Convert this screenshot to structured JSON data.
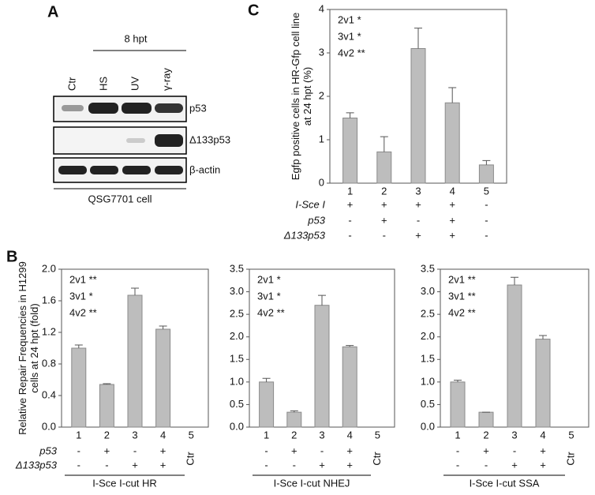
{
  "blot": {
    "panel": "A",
    "time_label": "8 hpt",
    "lanes": [
      "Ctr",
      "HS",
      "UV",
      "γ-ray"
    ],
    "bands": [
      "p53",
      "Δ133p53",
      "β-actin"
    ],
    "cell_line": "QSG7701 cell"
  },
  "chart_data": [
    {
      "type": "bar",
      "panel": "C",
      "ylabel": "Egfp positive cells  in HR-Gfp cell line at 24 hpt (%)",
      "color": "#bdbdbd",
      "categories": [
        "1",
        "2",
        "3",
        "4",
        "5"
      ],
      "values": [
        1.5,
        0.72,
        3.1,
        1.85,
        0.42
      ],
      "errors": [
        0.12,
        0.35,
        0.47,
        0.35,
        0.1
      ],
      "ylim": [
        0,
        4
      ],
      "yticks": [
        0,
        1,
        2,
        3,
        4
      ],
      "annotations": [
        "2v1 *",
        "3v1 *",
        "4v2 **"
      ],
      "rows": [
        {
          "label": "I-Sce I",
          "cells": [
            "+",
            "+",
            "+",
            "+",
            "-"
          ]
        },
        {
          "label": "p53",
          "cells": [
            "-",
            "+",
            "-",
            "+",
            "-"
          ]
        },
        {
          "label": "Δ133p53",
          "cells": [
            "-",
            "-",
            "+",
            "+",
            "-"
          ]
        }
      ]
    },
    {
      "type": "bar",
      "panel": "B",
      "ylabel": "Relative Repair Frequencies in H1299 cells at 24 hpt (fold)",
      "color": "#bdbdbd",
      "categories": [
        "1",
        "2",
        "3",
        "4",
        "5"
      ],
      "values": [
        1.0,
        0.54,
        1.67,
        1.24,
        null
      ],
      "errors": [
        0.04,
        0.01,
        0.09,
        0.04,
        null
      ],
      "ylim": [
        0,
        2
      ],
      "yticks": [
        {
          "value": 0,
          "label": "0.0"
        },
        0.4,
        0.8,
        1.2,
        1.6,
        {
          "value": 2,
          "label": "2.0"
        }
      ],
      "annotations": [
        "2v1 **",
        "3v1 *",
        "4v2 **"
      ],
      "rows": [
        {
          "label": "p53",
          "cells": [
            "-",
            "+",
            "-",
            "+"
          ]
        },
        {
          "label": "Δ133p53",
          "cells": [
            "-",
            "-",
            "+",
            "+"
          ]
        }
      ],
      "control_label": "Ctr",
      "xlabel": "I-Sce I-cut HR"
    },
    {
      "type": "bar",
      "color": "#bdbdbd",
      "categories": [
        "1",
        "2",
        "3",
        "4",
        "5"
      ],
      "values": [
        1.0,
        0.33,
        2.7,
        1.78,
        null
      ],
      "errors": [
        0.08,
        0.03,
        0.22,
        0.03,
        null
      ],
      "ylim": [
        0,
        3.5
      ],
      "yticks": [
        {
          "value": 0,
          "label": "0.0"
        },
        0.5,
        {
          "value": 1,
          "label": "1.0"
        },
        1.5,
        {
          "value": 2,
          "label": "2.0"
        },
        2.5,
        {
          "value": 3,
          "label": "3.0"
        },
        3.5
      ],
      "annotations": [
        "2v1 *",
        "3v1 *",
        "4v2 **"
      ],
      "rows": [
        {
          "cells": [
            "-",
            "+",
            "-",
            "+"
          ]
        },
        {
          "cells": [
            "-",
            "-",
            "+",
            "+"
          ]
        }
      ],
      "control_label": "Ctr",
      "xlabel": "I-Sce I-cut NHEJ"
    },
    {
      "type": "bar",
      "color": "#bdbdbd",
      "categories": [
        "1",
        "2",
        "3",
        "4",
        "5"
      ],
      "values": [
        1.0,
        0.33,
        3.15,
        1.95,
        null
      ],
      "errors": [
        0.04,
        0,
        0.17,
        0.08,
        null
      ],
      "ylim": [
        0,
        3.5
      ],
      "yticks": [
        {
          "value": 0,
          "label": "0.0"
        },
        0.5,
        {
          "value": 1,
          "label": "1.0"
        },
        1.5,
        {
          "value": 2,
          "label": "2.0"
        },
        2.5,
        {
          "value": 3,
          "label": "3.0"
        },
        3.5
      ],
      "annotations": [
        "2v1 **",
        "3v1 **",
        "4v2 **"
      ],
      "rows": [
        {
          "cells": [
            "-",
            "+",
            "-",
            "+"
          ]
        },
        {
          "cells": [
            "-",
            "-",
            "+",
            "+"
          ]
        }
      ],
      "control_label": "Ctr",
      "xlabel": "I-Sce I-cut SSA"
    }
  ]
}
